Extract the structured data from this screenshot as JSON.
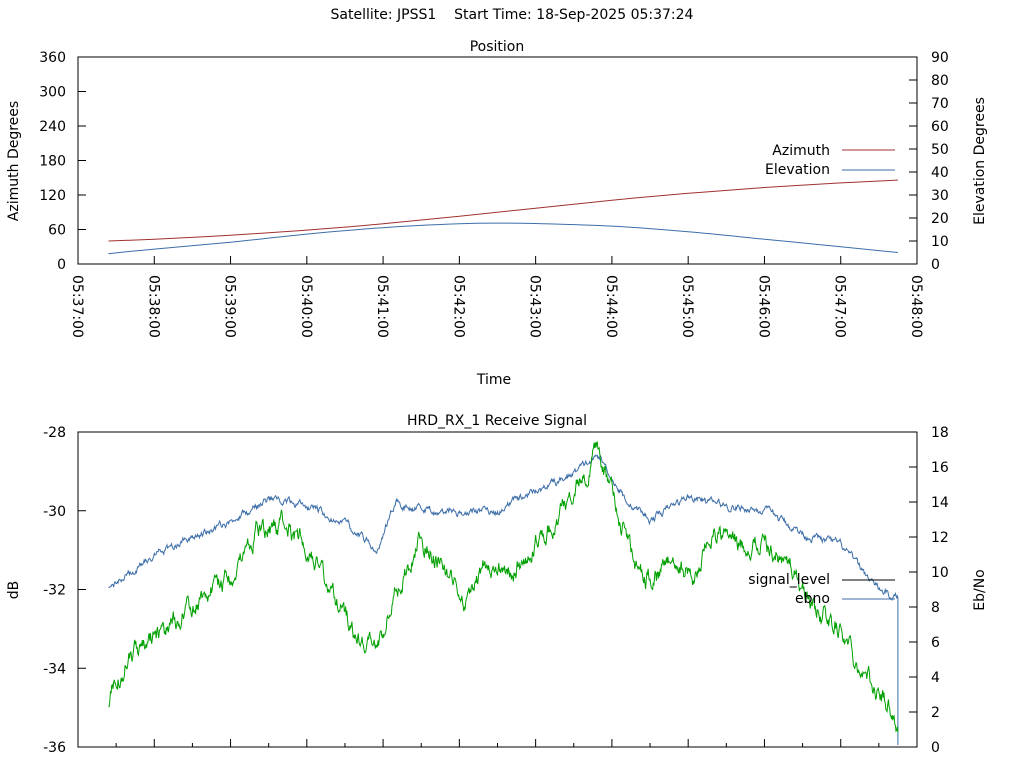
{
  "header": {
    "satellite_label": "Satellite: JPSS1",
    "start_time_label": "Start Time: 18-Sep-2025 05:37:24"
  },
  "colors": {
    "azimuth": "#a03030",
    "elevation": "#3c6ea8",
    "signal_level": "#00a000",
    "ebno": "#3c6ea8",
    "legend_signal_level": "#000000"
  },
  "chart_data": [
    {
      "type": "line",
      "title": "Position",
      "xlabel": "Time",
      "ylabel": "Azimuth Degrees",
      "y2label": "Elevation Degrees",
      "xlim": [
        "05:37:00",
        "05:48:00"
      ],
      "x_ticks": [
        "05:37:00",
        "05:38:00",
        "05:39:00",
        "05:40:00",
        "05:41:00",
        "05:42:00",
        "05:43:00",
        "05:44:00",
        "05:45:00",
        "05:46:00",
        "05:47:00",
        "05:48:00"
      ],
      "ylim": [
        0,
        360
      ],
      "y_ticks": [
        "0",
        "60",
        "120",
        "180",
        "240",
        "300",
        "360"
      ],
      "y2lim": [
        0,
        90
      ],
      "y2_ticks": [
        "0",
        "10",
        "20",
        "30",
        "40",
        "50",
        "60",
        "70",
        "80",
        "90"
      ],
      "legend": "right",
      "grid": false,
      "series": [
        {
          "name": "Azimuth",
          "axis": "y",
          "x": [
            "05:37:24",
            "05:38:00",
            "05:39:00",
            "05:40:00",
            "05:41:00",
            "05:42:00",
            "05:43:00",
            "05:44:00",
            "05:45:00",
            "05:46:00",
            "05:47:00",
            "05:47:45"
          ],
          "values": [
            40,
            43,
            50,
            59,
            70,
            83,
            97,
            111,
            123,
            133,
            141,
            146
          ]
        },
        {
          "name": "Elevation",
          "axis": "y2",
          "x": [
            "05:37:24",
            "05:38:00",
            "05:39:00",
            "05:40:00",
            "05:41:00",
            "05:42:00",
            "05:42:30",
            "05:43:00",
            "05:44:00",
            "05:45:00",
            "05:46:00",
            "05:47:00",
            "05:47:45"
          ],
          "values": [
            4.5,
            6.5,
            9.5,
            13,
            15.8,
            17.5,
            17.8,
            17.6,
            16.5,
            14,
            10.8,
            7.5,
            5
          ]
        }
      ]
    },
    {
      "type": "line",
      "title": "HRD_RX_1 Receive Signal",
      "xlabel": "",
      "ylabel": "dB",
      "y2label": "Eb/No",
      "xlim": [
        "05:37:00",
        "05:48:00"
      ],
      "ylim": [
        -36,
        -28
      ],
      "y_ticks": [
        "-28",
        "-30",
        "-32",
        "-34",
        "-36"
      ],
      "y2lim": [
        0,
        18
      ],
      "y2_ticks": [
        "0",
        "2",
        "4",
        "6",
        "8",
        "10",
        "12",
        "14",
        "16",
        "18"
      ],
      "legend": "right",
      "grid": false,
      "series": [
        {
          "name": "signal_level",
          "axis": "y",
          "x": [
            "05:37:24",
            "05:37:40",
            "05:38:00",
            "05:38:30",
            "05:39:00",
            "05:39:20",
            "05:39:40",
            "05:40:00",
            "05:40:15",
            "05:40:40",
            "05:40:55",
            "05:41:10",
            "05:41:30",
            "05:41:45",
            "05:42:05",
            "05:42:20",
            "05:42:40",
            "05:43:00",
            "05:43:20",
            "05:43:30",
            "05:43:50",
            "05:44:00",
            "05:44:20",
            "05:44:35",
            "05:44:50",
            "05:45:05",
            "05:45:20",
            "05:45:40",
            "05:46:00",
            "05:46:20",
            "05:46:40",
            "05:47:00",
            "05:47:20",
            "05:47:40",
            "05:47:45"
          ],
          "values": [
            -34.8,
            -33.6,
            -33.2,
            -32.4,
            -31.6,
            -30.5,
            -30.4,
            -30.8,
            -31.9,
            -33.2,
            -33.6,
            -32.0,
            -30.7,
            -31.2,
            -32.3,
            -31.3,
            -31.6,
            -30.8,
            -30.1,
            -29.4,
            -28.5,
            -29.5,
            -31.5,
            -31.8,
            -31.2,
            -31.7,
            -30.5,
            -30.9,
            -30.8,
            -31.4,
            -32.5,
            -33.0,
            -34.2,
            -35.0,
            -35.6
          ]
        },
        {
          "name": "ebno",
          "axis": "y2",
          "x": [
            "05:37:24",
            "05:38:00",
            "05:38:30",
            "05:39:00",
            "05:39:30",
            "05:40:00",
            "05:40:30",
            "05:40:55",
            "05:41:10",
            "05:41:30",
            "05:42:00",
            "05:42:30",
            "05:43:00",
            "05:43:20",
            "05:43:50",
            "05:44:10",
            "05:44:30",
            "05:45:00",
            "05:45:30",
            "05:46:00",
            "05:46:30",
            "05:47:00",
            "05:47:30",
            "05:47:45"
          ],
          "values": [
            9.0,
            11.0,
            12.0,
            12.8,
            14.2,
            13.8,
            12.8,
            11.3,
            14.0,
            13.6,
            13.4,
            13.5,
            14.6,
            15.2,
            16.6,
            14.2,
            13.0,
            14.3,
            13.8,
            13.5,
            12.2,
            11.5,
            9.0,
            8.5
          ]
        }
      ]
    }
  ]
}
